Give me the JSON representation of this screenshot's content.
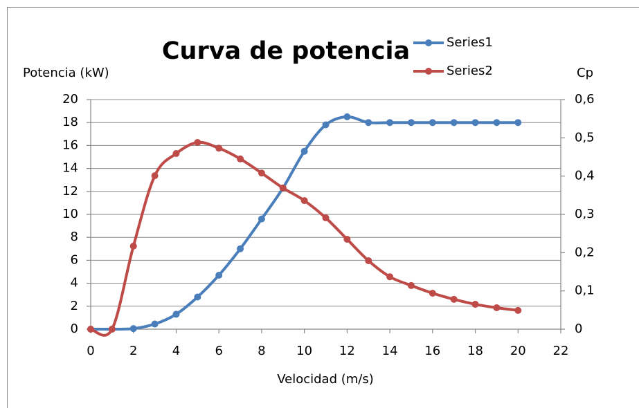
{
  "chart_data": {
    "type": "line",
    "title": "Curva de potencia",
    "x_label": "Velocidad (m/s)",
    "y_label": "Potencia (kW)",
    "y2_label": "Cp",
    "x": [
      0,
      1,
      2,
      3,
      4,
      5,
      6,
      7,
      8,
      9,
      10,
      11,
      12,
      13,
      14,
      15,
      16,
      17,
      18,
      19,
      20
    ],
    "series": [
      {
        "name": "Series1",
        "color": "#4a7ebb",
        "axis": "y",
        "values": [
          0,
          0,
          0.05,
          0.45,
          1.3,
          2.8,
          4.7,
          7.0,
          9.6,
          12.3,
          15.5,
          17.8,
          18.5,
          18,
          18,
          18,
          18,
          18,
          18,
          18,
          18
        ]
      },
      {
        "name": "Series2",
        "color": "#be4b48",
        "axis": "y2",
        "values": [
          0,
          0,
          0.217,
          0.401,
          0.459,
          0.488,
          0.473,
          0.445,
          0.408,
          0.369,
          0.336,
          0.291,
          0.235,
          0.179,
          0.137,
          0.114,
          0.094,
          0.078,
          0.065,
          0.056,
          0.049
        ]
      }
    ],
    "xlim": [
      0,
      22
    ],
    "xticks": [
      0,
      2,
      4,
      6,
      8,
      10,
      12,
      14,
      16,
      18,
      20,
      22
    ],
    "ylim": [
      0,
      20
    ],
    "yticks": [
      0,
      2,
      4,
      6,
      8,
      10,
      12,
      14,
      16,
      18,
      20
    ],
    "y2lim": [
      0,
      0.6
    ],
    "y2ticks": [
      0,
      {
        "value": 0.1,
        "label": "0,1"
      },
      {
        "value": 0.2,
        "label": "0,2"
      },
      {
        "value": 0.3,
        "label": "0,3"
      },
      {
        "value": 0.4,
        "label": "0,4"
      },
      {
        "value": 0.5,
        "label": "0,5"
      },
      {
        "value": 0.6,
        "label": "0,6"
      }
    ],
    "grid": true,
    "legend": "top-right",
    "smooth": true
  }
}
